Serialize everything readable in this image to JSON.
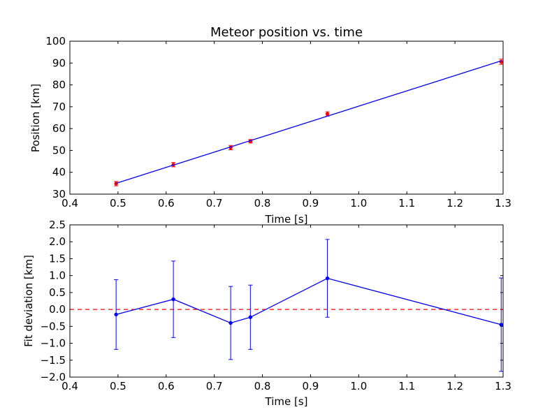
{
  "chart_data": [
    {
      "type": "scatter",
      "title": "Meteor position vs. time",
      "xlabel": "Time [s]",
      "ylabel": "Position [km]",
      "xlim": [
        0.4,
        1.3
      ],
      "ylim": [
        30,
        100
      ],
      "xticks": [
        "0.4",
        "0.5",
        "0.6",
        "0.7",
        "0.8",
        "0.9",
        "1.0",
        "1.1",
        "1.2",
        "1.3"
      ],
      "yticks": [
        "30",
        "40",
        "50",
        "60",
        "70",
        "80",
        "90",
        "100"
      ],
      "grid": false,
      "series": [
        {
          "style": "points-with-errorbars",
          "color": "#ff0000",
          "x": [
            0.496,
            0.615,
            0.734,
            0.775,
            0.935,
            1.296
          ],
          "y": [
            34.8,
            43.5,
            51.3,
            54.2,
            66.7,
            90.6
          ],
          "yerr": [
            1.0,
            1.0,
            1.0,
            0.8,
            1.0,
            1.2
          ]
        },
        {
          "style": "fit-line",
          "color": "#0000ff",
          "x": [
            0.496,
            1.296
          ],
          "y": [
            34.95,
            91.0
          ]
        }
      ]
    },
    {
      "type": "line",
      "xlabel": "Time [s]",
      "ylabel": "Fit deviation [km]",
      "xlim": [
        0.4,
        1.3
      ],
      "ylim": [
        -2.0,
        2.5
      ],
      "xticks": [
        "0.4",
        "0.5",
        "0.6",
        "0.7",
        "0.8",
        "0.9",
        "1.0",
        "1.1",
        "1.2",
        "1.3"
      ],
      "yticks": [
        "−2.0",
        "−1.5",
        "−1.0",
        "−0.5",
        "0.0",
        "0.5",
        "1.0",
        "1.5",
        "2.0",
        "2.5"
      ],
      "grid": false,
      "reference_line": {
        "y": 0.0,
        "color": "#ff0000",
        "style": "dashed"
      },
      "series": [
        {
          "color": "#0000ff",
          "x": [
            0.496,
            0.615,
            0.734,
            0.775,
            0.935,
            1.296
          ],
          "y": [
            -0.15,
            0.3,
            -0.4,
            -0.23,
            0.92,
            -0.45
          ],
          "yerr": [
            1.03,
            1.13,
            1.08,
            0.95,
            1.15,
            1.38
          ]
        }
      ]
    }
  ]
}
